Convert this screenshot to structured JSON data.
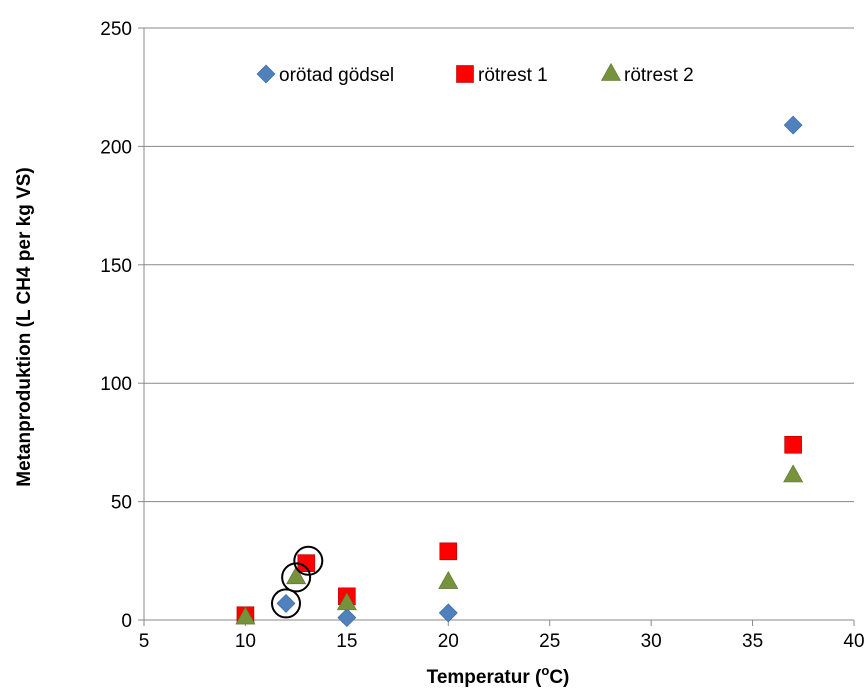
{
  "chart_data": {
    "type": "scatter",
    "title": "",
    "xlabel": "Temperatur (",
    "xlabel_sup": "o",
    "xlabel_tail": "C)",
    "ylabel": "Metanproduktion (L CH4 per kg VS)",
    "xlim": [
      5,
      40
    ],
    "ylim": [
      0,
      250
    ],
    "xticks": [
      5,
      10,
      15,
      20,
      25,
      30,
      35,
      40
    ],
    "yticks": [
      0,
      50,
      100,
      150,
      200,
      250
    ],
    "grid": "horizontal",
    "legend_position": "top",
    "series": [
      {
        "name": "orötad gödsel",
        "marker": "diamond",
        "color": "#4F81BD",
        "points": [
          [
            12,
            7
          ],
          [
            15,
            1
          ],
          [
            20,
            3
          ],
          [
            37,
            209
          ]
        ]
      },
      {
        "name": "rötrest 1",
        "marker": "square",
        "color": "#FF0000",
        "points": [
          [
            10,
            2
          ],
          [
            13,
            24
          ],
          [
            15,
            10
          ],
          [
            20,
            29
          ],
          [
            37,
            74
          ]
        ]
      },
      {
        "name": "rötrest 2",
        "marker": "triangle",
        "color": "#76933C",
        "points": [
          [
            10,
            1
          ],
          [
            12.5,
            18
          ],
          [
            15,
            7
          ],
          [
            20,
            16
          ],
          [
            37,
            61
          ]
        ]
      }
    ],
    "circled_points": [
      [
        12,
        7
      ],
      [
        12.5,
        18
      ],
      [
        13.1,
        25
      ]
    ]
  }
}
